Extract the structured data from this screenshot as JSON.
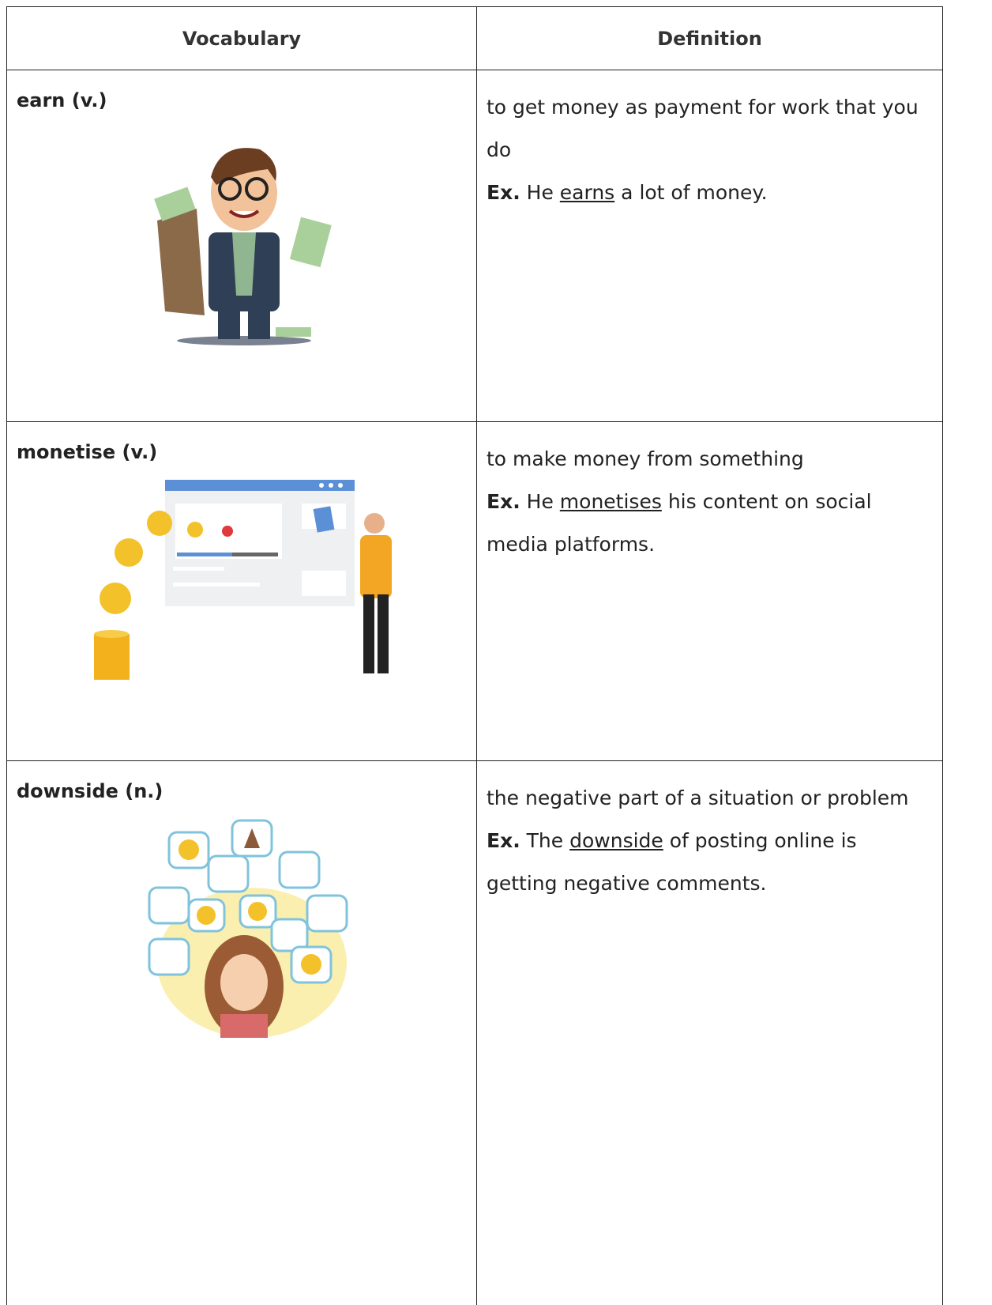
{
  "table": {
    "header": [
      "Vocabulary",
      "Definition"
    ],
    "rows": [
      {
        "term": "earn (v.)",
        "definition": "to get money as payment for work that you do",
        "example": {
          "label": "Ex.",
          "before": "He",
          "word": "earns",
          "after": "a lot of money."
        }
      },
      {
        "term": "monetise (v.)",
        "definition": "to make money from something",
        "example": {
          "label": "Ex.",
          "before": "He",
          "word": "monetises",
          "after": "his content on social media platforms."
        }
      },
      {
        "term": "downside (n.)",
        "definition": "the negative part of a situation or problem",
        "example": {
          "label": "Ex.",
          "before": "The",
          "word": "downside",
          "after": "of posting online is getting negative comments."
        }
      }
    ]
  }
}
